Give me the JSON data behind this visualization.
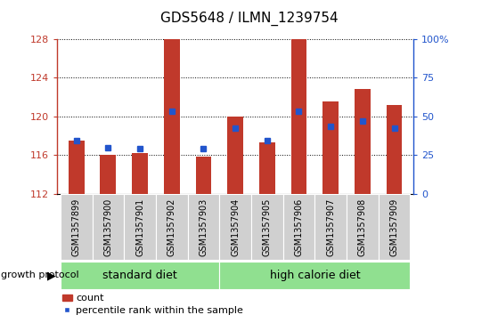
{
  "title": "GDS5648 / ILMN_1239754",
  "samples": [
    "GSM1357899",
    "GSM1357900",
    "GSM1357901",
    "GSM1357902",
    "GSM1357903",
    "GSM1357904",
    "GSM1357905",
    "GSM1357906",
    "GSM1357907",
    "GSM1357908",
    "GSM1357909"
  ],
  "bar_base": 112,
  "bar_tops": [
    117.5,
    116.0,
    116.2,
    128.0,
    115.8,
    120.0,
    117.3,
    128.0,
    121.5,
    122.8,
    121.2
  ],
  "blue_dots": [
    117.5,
    116.8,
    116.7,
    120.5,
    116.7,
    118.8,
    117.5,
    120.5,
    119.0,
    119.5,
    118.8
  ],
  "ylim": [
    112,
    128
  ],
  "y_ticks": [
    112,
    116,
    120,
    124,
    128
  ],
  "y2_ticks": [
    0,
    25,
    50,
    75,
    100
  ],
  "y2_tick_labels": [
    "0",
    "25",
    "50",
    "75",
    "100%"
  ],
  "bar_color": "#c0392b",
  "blue_color": "#2255cc",
  "group1_samples": [
    0,
    1,
    2,
    3,
    4
  ],
  "group2_samples": [
    5,
    6,
    7,
    8,
    9,
    10
  ],
  "group1_label": "standard diet",
  "group2_label": "high calorie diet",
  "group_row_label": "growth protocol",
  "legend_count": "count",
  "legend_pct": "percentile rank within the sample",
  "bg_color_tick": "#d0d0d0",
  "bg_color_green": "#90e090",
  "title_fontsize": 11,
  "tick_label_fontsize": 8,
  "sample_label_fontsize": 7,
  "group_label_fontsize": 9,
  "legend_fontsize": 8
}
